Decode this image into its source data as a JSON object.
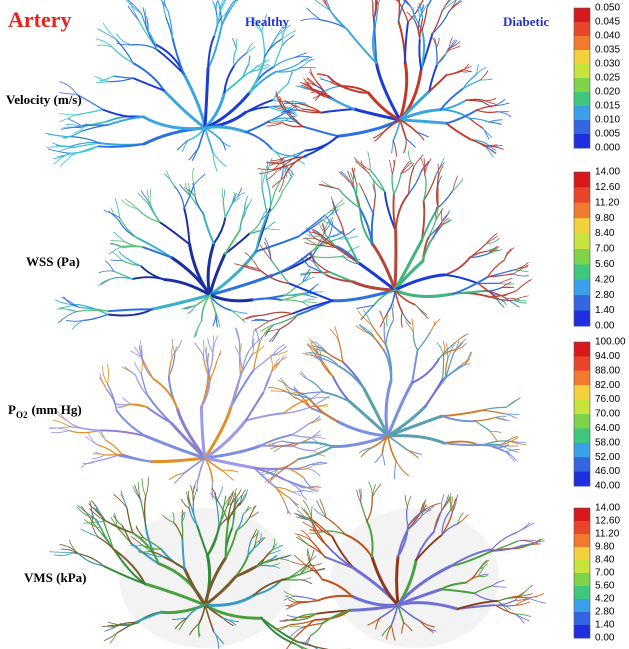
{
  "title": "Artery",
  "columns": [
    "Healthy",
    "Diabetic"
  ],
  "rows": [
    {
      "label": "Velocity (m/s)",
      "colorbar": [
        "0.050",
        "0.045",
        "0.040",
        "0.035",
        "0.030",
        "0.025",
        "0.020",
        "0.015",
        "0.010",
        "0.005",
        "0.000"
      ]
    },
    {
      "label": "WSS (Pa)",
      "colorbar": [
        "14.00",
        "12.60",
        "11.20",
        "9.80",
        "8.40",
        "7.00",
        "5.60",
        "4.20",
        "2.80",
        "1.40",
        "0.00"
      ]
    },
    {
      "label": {
        "text": "P",
        "subscript": "O2",
        "unit": "(mm Hg)"
      },
      "colorbar": [
        "100.00",
        "94.00",
        "88.00",
        "82.00",
        "76.00",
        "70.00",
        "64.00",
        "58.00",
        "52.00",
        "46.00",
        "40.00"
      ]
    },
    {
      "label": "VMS (kPa)",
      "colorbar": [
        "14.00",
        "12.60",
        "11.20",
        "9.80",
        "8.40",
        "7.00",
        "5.60",
        "4.20",
        "2.80",
        "1.40",
        "0.00"
      ]
    }
  ]
}
